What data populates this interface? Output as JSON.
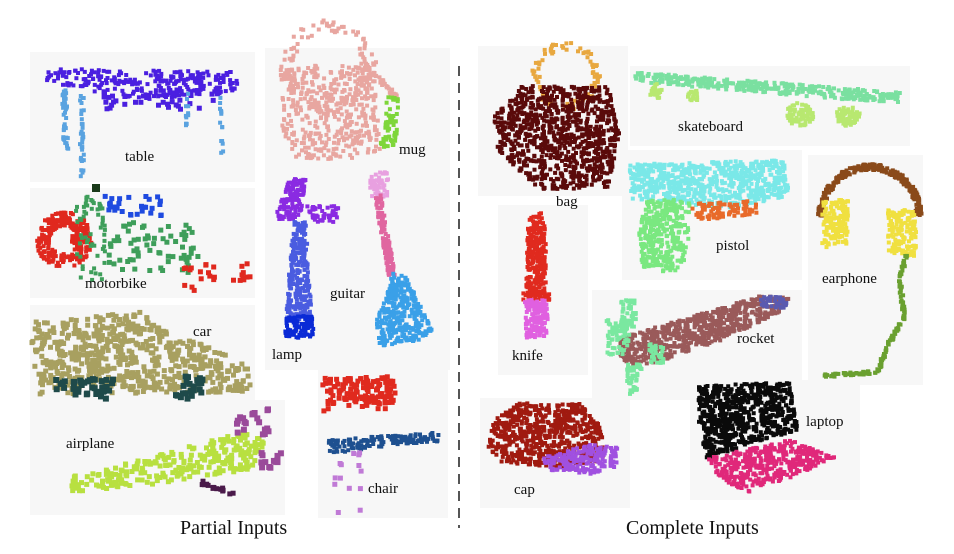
{
  "captions": {
    "partial": "Partial Inputs",
    "complete": "Complete Inputs"
  },
  "partial_labels": {
    "table": "table",
    "mug": "mug",
    "motorbike": "motorbike",
    "lamp": "lamp",
    "guitar": "guitar",
    "car": "car",
    "airplane": "airplane",
    "chair": "chair"
  },
  "complete_labels": {
    "bag": "bag",
    "skateboard": "skateboard",
    "pistol": "pistol",
    "earphone": "earphone",
    "knife": "knife",
    "rocket": "rocket",
    "cap": "cap",
    "laptop": "laptop"
  },
  "colors": {
    "table_top": "#4a1fe0",
    "table_legs": "#5aa3e0",
    "mug_body": "#e8a6a0",
    "mug_handle": "#7ed63a",
    "motor_red": "#e0281e",
    "motor_green": "#3e9e5a",
    "motor_blue": "#1e4ae0",
    "lamp_top": "#8a2be2",
    "lamp_body": "#4a5ce0",
    "lamp_base": "#0a2ad6",
    "guitar_head": "#e8a0e0",
    "guitar_neck": "#e066a0",
    "guitar_body": "#3aa0e8",
    "car_body": "#a8a060",
    "car_wheels": "#1e4a4a",
    "airplane_body": "#b8e040",
    "airplane_tail": "#9a4a9a",
    "airplane_engine": "#4a1a4a",
    "chair_back": "#e02a1e",
    "chair_seat": "#1e5090",
    "chair_legs": "#c07ad6",
    "bag_handle": "#e8a840",
    "bag_body": "#5a0a0a",
    "skateboard_deck": "#7ae0a0",
    "skateboard_wheels": "#b8e870",
    "pistol_top": "#7ae8e8",
    "pistol_grip": "#7ae880",
    "pistol_trigger": "#e86a2a",
    "earphone_band": "#8a4a1a",
    "earphone_cups": "#f0e040",
    "earphone_cord": "#6aa030",
    "knife_blade": "#e02a1e",
    "knife_handle": "#e060e0",
    "rocket_body": "#9a5a5a",
    "rocket_tip": "#5a5ab0",
    "rocket_fins": "#7ae8a0",
    "cap_crown": "#a01a10",
    "cap_brim": "#a050e0",
    "laptop_screen": "#0a0a0a",
    "laptop_base": "#e0287a",
    "divider": "#555555"
  }
}
